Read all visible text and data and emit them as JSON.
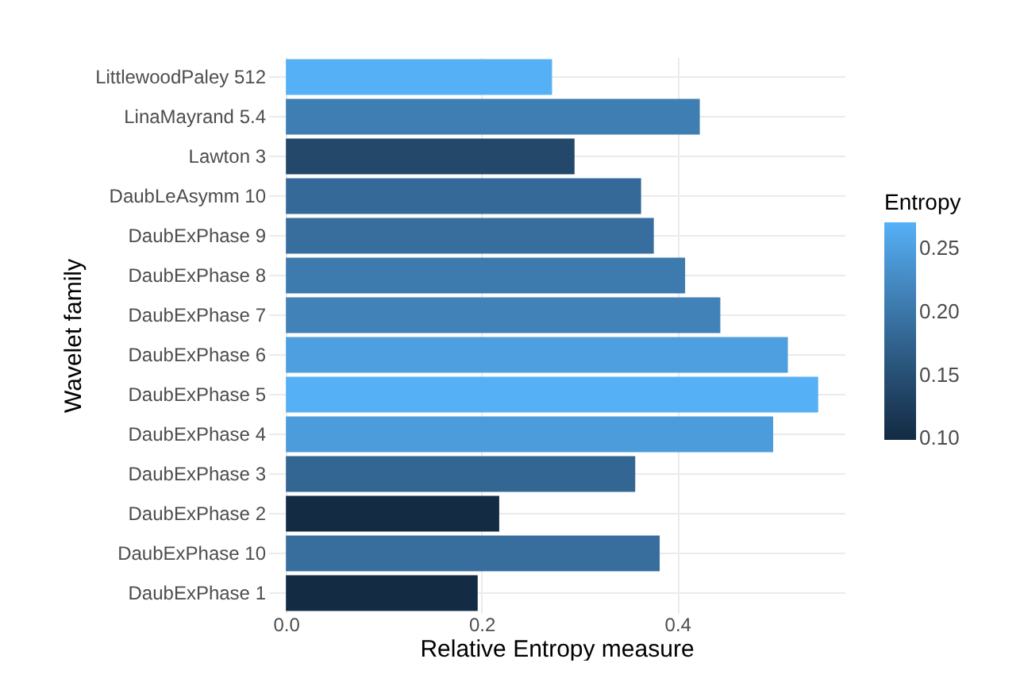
{
  "chart_data": {
    "type": "bar",
    "orientation": "horizontal",
    "xlabel": "Relative Entropy measure",
    "ylabel": "Wavelet family",
    "clabel": "Entropy",
    "categories": [
      "LittlewoodPaley 512",
      "LinaMayrand 5.4",
      "Lawton 3",
      "DaubLeAsymm 10",
      "DaubExPhase 9",
      "DaubExPhase 8",
      "DaubExPhase 7",
      "DaubExPhase 6",
      "DaubExPhase 5",
      "DaubExPhase 4",
      "DaubExPhase 3",
      "DaubExPhase 2",
      "DaubExPhase 10",
      "DaubExPhase 1"
    ],
    "values": [
      0.272,
      0.423,
      0.295,
      0.363,
      0.376,
      0.408,
      0.444,
      0.513,
      0.544,
      0.498,
      0.357,
      0.218,
      0.382,
      0.196
    ],
    "cvalues": [
      0.27,
      0.21,
      0.14,
      0.185,
      0.19,
      0.205,
      0.215,
      0.25,
      0.27,
      0.245,
      0.18,
      0.1,
      0.19,
      0.1
    ],
    "clim": [
      0.099,
      0.271
    ],
    "cticks": [
      {
        "value": 0.1,
        "label": "0.10"
      },
      0.15,
      {
        "value": 0.2,
        "label": "0.20"
      },
      0.25
    ],
    "xlim": [
      -0.018,
      0.571
    ],
    "xticks": [
      {
        "value": 0,
        "label": "0.0"
      },
      {
        "value": 0.2,
        "label": "0.2"
      },
      {
        "value": 0.4,
        "label": "0.4"
      }
    ],
    "grid": true
  }
}
